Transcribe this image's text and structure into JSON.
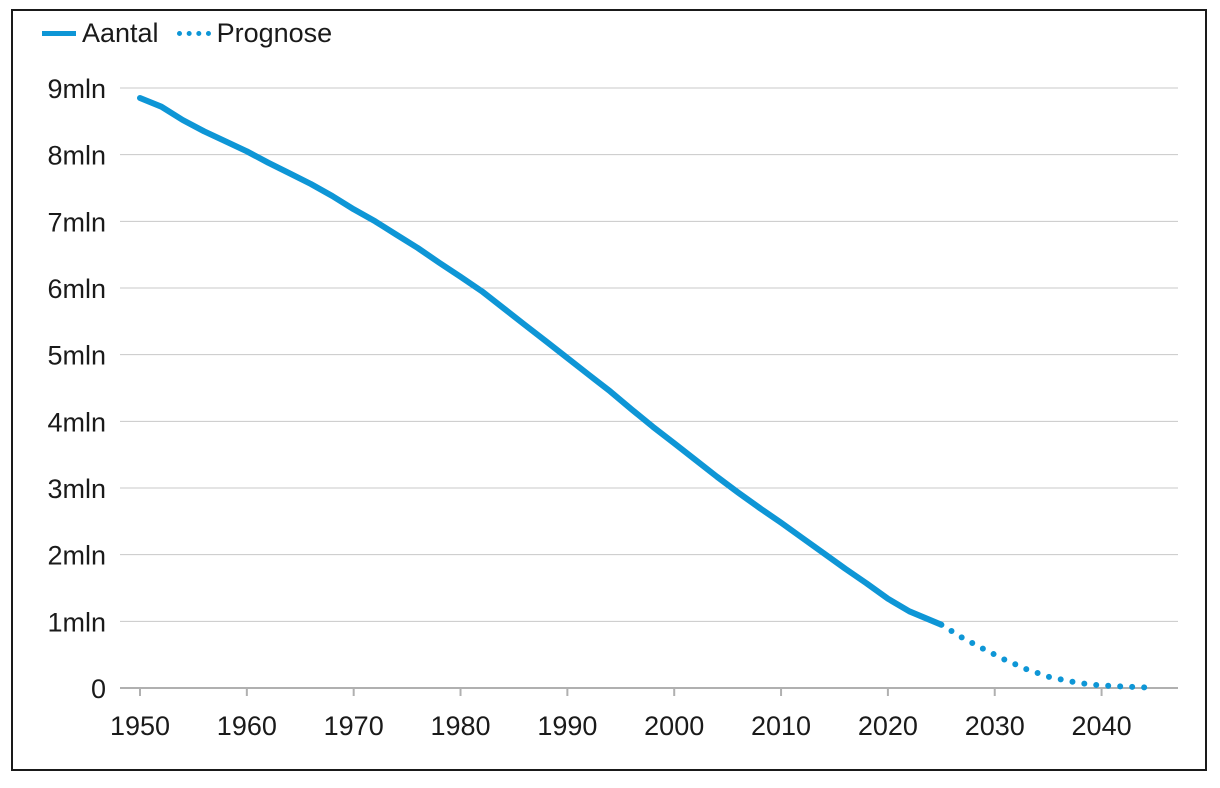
{
  "chart_data": {
    "type": "line",
    "title": "",
    "xlabel": "",
    "ylabel": "",
    "xlim": [
      1950,
      2045
    ],
    "ylim": [
      0,
      9000000
    ],
    "grid": true,
    "legend_placement": "top-left",
    "x_ticks": [
      1950,
      1960,
      1970,
      1980,
      1990,
      2000,
      2010,
      2020,
      2030,
      2040
    ],
    "x_tick_labels": [
      "1950",
      "1960",
      "1970",
      "1980",
      "1990",
      "2000",
      "2010",
      "2020",
      "2030",
      "2040"
    ],
    "y_ticks": [
      0,
      1000000,
      2000000,
      3000000,
      4000000,
      5000000,
      6000000,
      7000000,
      8000000,
      9000000
    ],
    "y_tick_labels": [
      "0",
      "1mln",
      "2mln",
      "3mln",
      "4mln",
      "5mln",
      "6mln",
      "7mln",
      "8mln",
      "9mln"
    ],
    "series": [
      {
        "name": "Aantal",
        "style": "solid",
        "color": "#0e96d6",
        "x": [
          1950,
          1952,
          1954,
          1956,
          1958,
          1960,
          1962,
          1964,
          1966,
          1968,
          1970,
          1972,
          1974,
          1976,
          1978,
          1980,
          1982,
          1984,
          1986,
          1988,
          1990,
          1992,
          1994,
          1996,
          1998,
          2000,
          2002,
          2004,
          2006,
          2008,
          2010,
          2012,
          2014,
          2016,
          2018,
          2020,
          2022,
          2025
        ],
        "values": [
          8850000,
          8720000,
          8520000,
          8350000,
          8200000,
          8050000,
          7880000,
          7720000,
          7560000,
          7380000,
          7180000,
          7000000,
          6800000,
          6600000,
          6380000,
          6170000,
          5950000,
          5700000,
          5450000,
          5200000,
          4950000,
          4700000,
          4450000,
          4180000,
          3920000,
          3670000,
          3420000,
          3170000,
          2930000,
          2700000,
          2480000,
          2250000,
          2020000,
          1790000,
          1570000,
          1340000,
          1150000,
          950000
        ]
      },
      {
        "name": "Prognose",
        "style": "dotted",
        "color": "#0e96d6",
        "x": [
          2025,
          2027,
          2029,
          2031,
          2033,
          2035,
          2037,
          2039,
          2041,
          2043,
          2045
        ],
        "values": [
          950000,
          750000,
          580000,
          420000,
          280000,
          170000,
          100000,
          50000,
          30000,
          15000,
          5000
        ]
      }
    ]
  }
}
